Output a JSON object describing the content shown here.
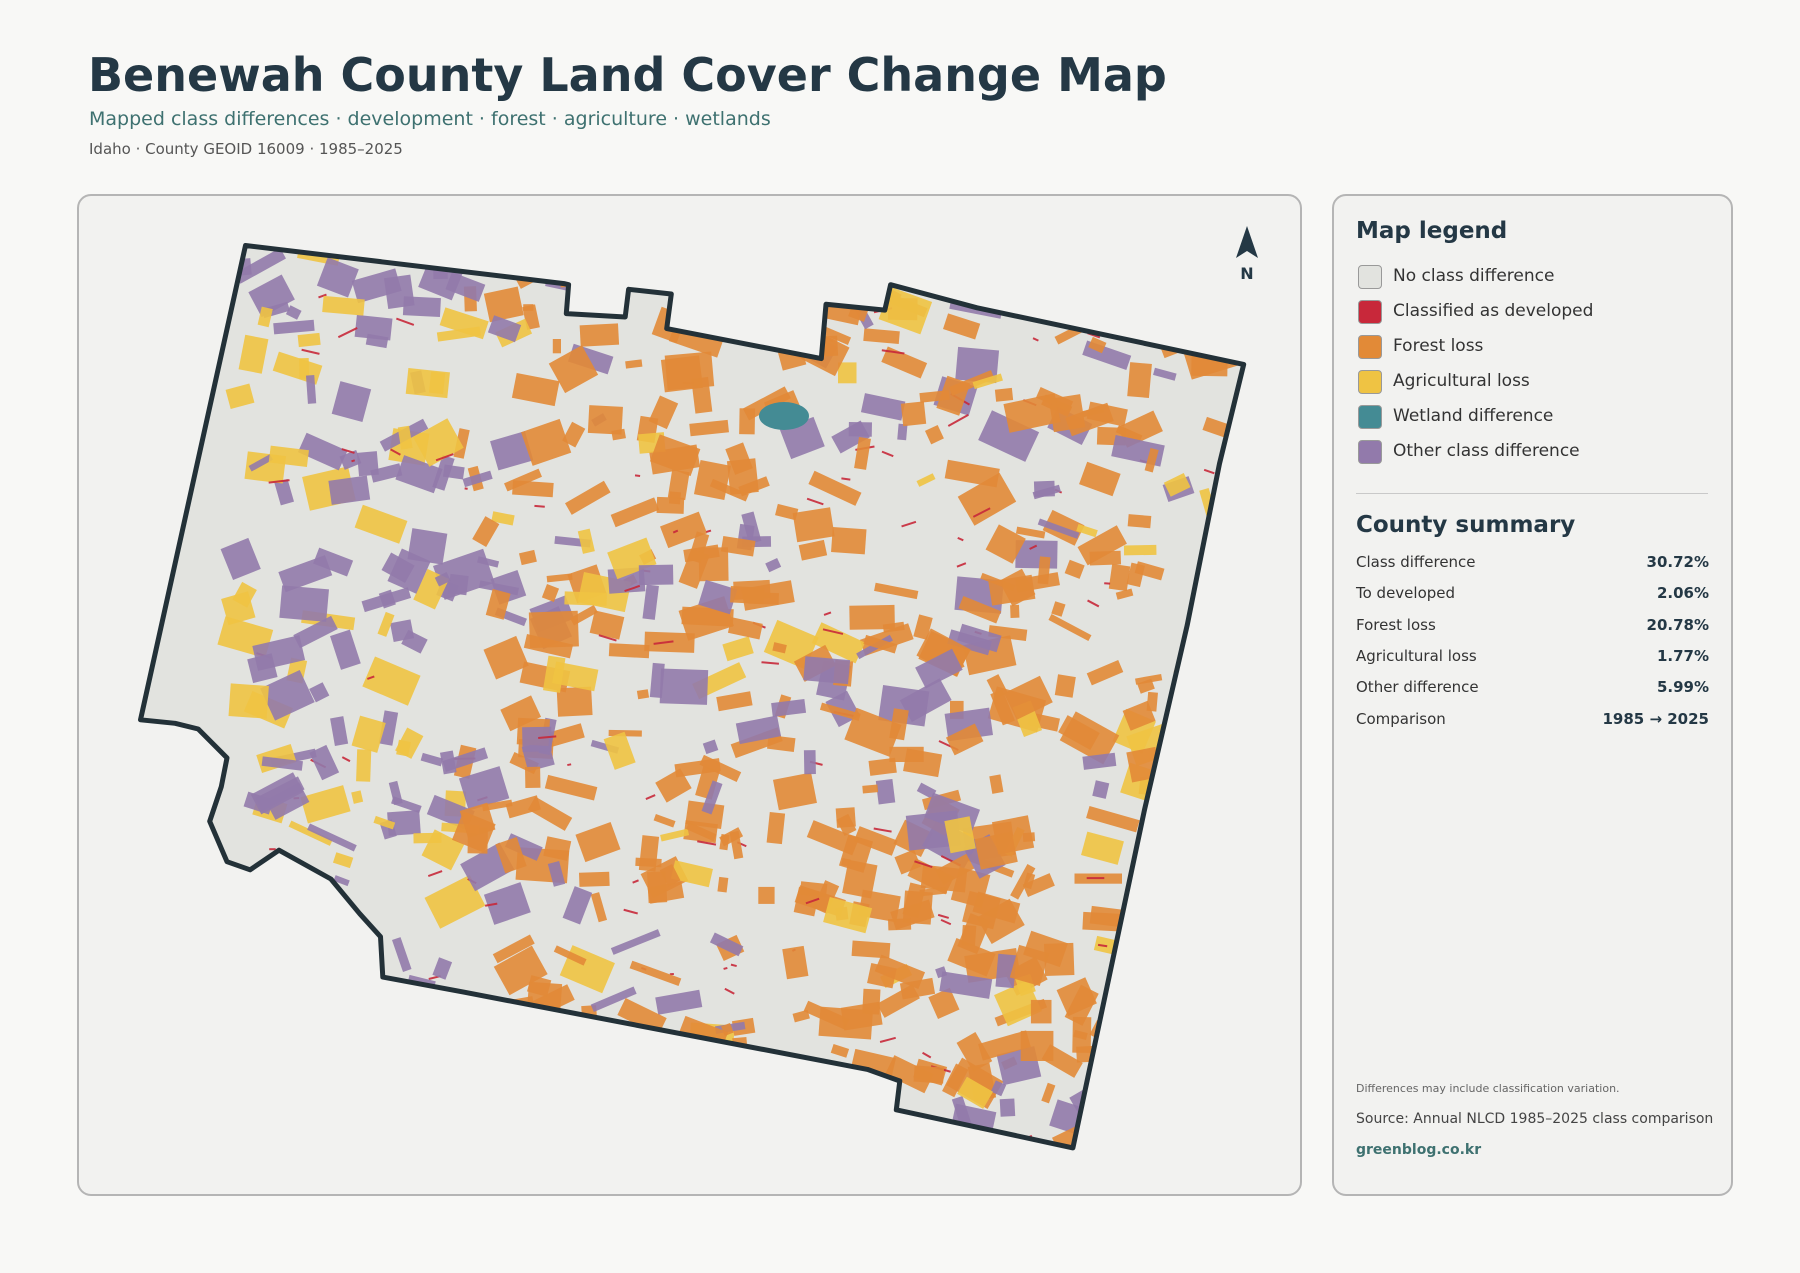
{
  "header": {
    "title": "Benewah County Land Cover Change Map",
    "subtitle": "Mapped class differences · development · forest · agriculture · wetlands",
    "meta": "Idaho · County GEOID 16009 · 1985–2025"
  },
  "map": {
    "north_label": "N"
  },
  "legend": {
    "title": "Map legend",
    "items": [
      {
        "label": "No class difference",
        "color": "#e2e3df"
      },
      {
        "label": "Classified as developed",
        "color": "#c8283a"
      },
      {
        "label": "Forest loss",
        "color": "#e28a37"
      },
      {
        "label": "Agricultural loss",
        "color": "#efc343"
      },
      {
        "label": "Wetland difference",
        "color": "#448b94"
      },
      {
        "label": "Other class difference",
        "color": "#927aab"
      }
    ]
  },
  "summary": {
    "title": "County summary",
    "rows": [
      [
        "Class difference",
        "30.72%"
      ],
      [
        "To developed",
        "2.06%"
      ],
      [
        "Forest loss",
        "20.78%"
      ],
      [
        "Agricultural loss",
        "1.77%"
      ],
      [
        "Other difference",
        "5.99%"
      ],
      [
        "Comparison",
        "1985 → 2025"
      ]
    ]
  },
  "footer": {
    "note": "Differences may include classification variation.",
    "source": "Source: Annual NLCD 1985–2025 class comparison",
    "site": "greenblog.co.kr"
  }
}
